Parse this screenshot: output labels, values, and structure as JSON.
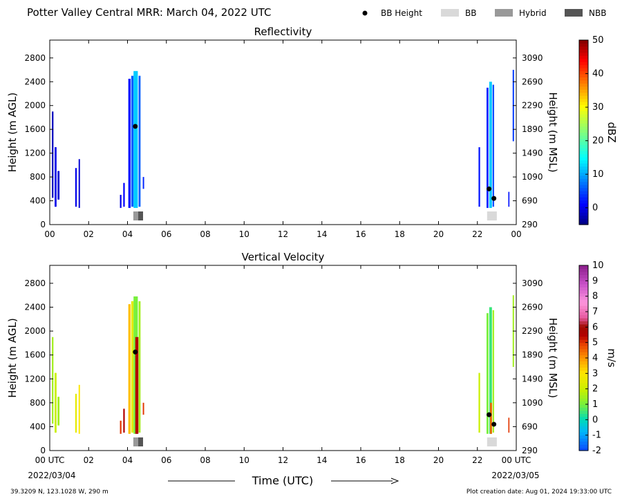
{
  "title": "Potter Valley Central MRR:  March 04, 2022 UTC",
  "legend": [
    {
      "label": "BB Height",
      "kind": "dot",
      "color": "#000000"
    },
    {
      "label": "BB",
      "kind": "box",
      "color": "#d9d9d9"
    },
    {
      "label": "Hybrid",
      "kind": "box",
      "color": "#999999"
    },
    {
      "label": "NBB",
      "kind": "box",
      "color": "#555555"
    }
  ],
  "x_axis": {
    "label": "Time (UTC)",
    "tick_labels_top": [
      "00",
      "02",
      "04",
      "06",
      "08",
      "10",
      "12",
      "14",
      "16",
      "18",
      "20",
      "22",
      "00"
    ],
    "tick_labels_bottom": [
      "00 UTC",
      "02",
      "04",
      "06",
      "08",
      "10",
      "12",
      "14",
      "16",
      "18",
      "20",
      "22",
      "00 UTC"
    ],
    "start_date": "2022/03/04",
    "end_date": "2022/03/05"
  },
  "footer": {
    "location": "39.3209 N, 123.1028 W, 290 m",
    "creation": "Plot creation date: Aug 01, 2024 19:33:00 UTC"
  },
  "chart_data": [
    {
      "type": "heatmap",
      "title": "Reflectivity",
      "xlabel": "",
      "ylabel": "Height (m AGL)",
      "y2label": "Height (m MSL)",
      "xlim": [
        0,
        24
      ],
      "ylim": [
        0,
        3100
      ],
      "yticks": [
        0,
        400,
        800,
        1200,
        1600,
        2000,
        2400,
        2800
      ],
      "y2ticks": [
        290,
        690,
        1090,
        1490,
        1890,
        2290,
        2690,
        3090
      ],
      "colorbar": {
        "label": "dBZ",
        "min": -5,
        "max": 50,
        "ticks": [
          0,
          10,
          20,
          30,
          40,
          50
        ],
        "scheme": "jet"
      },
      "columns": [
        {
          "x": 0.15,
          "w": 0.08,
          "bottom": 450,
          "top": 1900,
          "value": -2
        },
        {
          "x": 0.3,
          "w": 0.1,
          "bottom": 300,
          "top": 1300,
          "value": 0
        },
        {
          "x": 0.45,
          "w": 0.1,
          "bottom": 420,
          "top": 900,
          "value": -1
        },
        {
          "x": 1.35,
          "w": 0.08,
          "bottom": 300,
          "top": 950,
          "value": 0
        },
        {
          "x": 1.52,
          "w": 0.07,
          "bottom": 280,
          "top": 1100,
          "value": -1
        },
        {
          "x": 3.65,
          "w": 0.08,
          "bottom": 280,
          "top": 500,
          "value": 0
        },
        {
          "x": 3.82,
          "w": 0.08,
          "bottom": 300,
          "top": 700,
          "value": 1
        },
        {
          "x": 4.1,
          "w": 0.12,
          "bottom": 280,
          "top": 2450,
          "value": 2
        },
        {
          "x": 4.25,
          "w": 0.12,
          "bottom": 300,
          "top": 2500,
          "value": 6
        },
        {
          "x": 4.42,
          "w": 0.22,
          "bottom": 280,
          "top": 2580,
          "value": 12
        },
        {
          "x": 4.62,
          "w": 0.1,
          "bottom": 300,
          "top": 2500,
          "value": 6
        },
        {
          "x": 4.82,
          "w": 0.07,
          "bottom": 600,
          "top": 800,
          "value": 3
        },
        {
          "x": 22.1,
          "w": 0.08,
          "bottom": 300,
          "top": 1300,
          "value": 2
        },
        {
          "x": 22.52,
          "w": 0.1,
          "bottom": 280,
          "top": 2300,
          "value": 3
        },
        {
          "x": 22.68,
          "w": 0.14,
          "bottom": 280,
          "top": 2400,
          "value": 12
        },
        {
          "x": 22.82,
          "w": 0.08,
          "bottom": 300,
          "top": 2350,
          "value": 5
        },
        {
          "x": 23.62,
          "w": 0.06,
          "bottom": 300,
          "top": 550,
          "value": 2
        },
        {
          "x": 23.85,
          "w": 0.07,
          "bottom": 1400,
          "top": 2600,
          "value": 4
        }
      ],
      "bb_points": [
        {
          "x": 4.4,
          "y": 1650
        },
        {
          "x": 22.6,
          "y": 600
        },
        {
          "x": 22.85,
          "y": 440
        }
      ],
      "bb_types": [
        {
          "x0": 4.3,
          "x1": 4.55,
          "type": "Hybrid"
        },
        {
          "x0": 4.55,
          "x1": 4.8,
          "type": "NBB"
        },
        {
          "x0": 22.5,
          "x1": 23.0,
          "type": "BB"
        }
      ]
    },
    {
      "type": "heatmap",
      "title": "Vertical Velocity",
      "xlabel": "Time (UTC)",
      "ylabel": "Height (m AGL)",
      "y2label": "Height (m MSL)",
      "xlim": [
        0,
        24
      ],
      "ylim": [
        0,
        3100
      ],
      "yticks": [
        0,
        400,
        800,
        1200,
        1600,
        2000,
        2400,
        2800
      ],
      "y2ticks": [
        290,
        690,
        1090,
        1490,
        1890,
        2290,
        2690,
        3090
      ],
      "colorbar": {
        "label": "m/s",
        "min": -2,
        "max": 10,
        "ticks": [
          -2,
          -1,
          0,
          1,
          2,
          3,
          4,
          5,
          6,
          7,
          8,
          9,
          10
        ],
        "scheme": "velocity"
      },
      "columns": [
        {
          "x": 0.15,
          "w": 0.08,
          "bottom": 450,
          "top": 1900,
          "value": 1.5
        },
        {
          "x": 0.3,
          "w": 0.1,
          "bottom": 300,
          "top": 1300,
          "value": 2
        },
        {
          "x": 0.45,
          "w": 0.1,
          "bottom": 420,
          "top": 900,
          "value": 1.5
        },
        {
          "x": 1.35,
          "w": 0.08,
          "bottom": 300,
          "top": 950,
          "value": 2.5
        },
        {
          "x": 1.52,
          "w": 0.07,
          "bottom": 280,
          "top": 1100,
          "value": 3
        },
        {
          "x": 3.65,
          "w": 0.08,
          "bottom": 280,
          "top": 500,
          "value": 5
        },
        {
          "x": 3.82,
          "w": 0.08,
          "bottom": 300,
          "top": 700,
          "value": 5.5
        },
        {
          "x": 4.1,
          "w": 0.12,
          "bottom": 280,
          "top": 2450,
          "value": 3.5
        },
        {
          "x": 4.25,
          "w": 0.12,
          "bottom": 300,
          "top": 2500,
          "value": 2.5
        },
        {
          "x": 4.42,
          "w": 0.22,
          "bottom": 280,
          "top": 2580,
          "value": 1
        },
        {
          "x": 4.48,
          "w": 0.16,
          "bottom": 280,
          "top": 1900,
          "value": 5.5
        },
        {
          "x": 4.62,
          "w": 0.1,
          "bottom": 300,
          "top": 2500,
          "value": 1.5
        },
        {
          "x": 4.82,
          "w": 0.07,
          "bottom": 600,
          "top": 800,
          "value": 5
        },
        {
          "x": 22.1,
          "w": 0.08,
          "bottom": 300,
          "top": 1300,
          "value": 2
        },
        {
          "x": 22.52,
          "w": 0.1,
          "bottom": 280,
          "top": 2300,
          "value": 1
        },
        {
          "x": 22.68,
          "w": 0.14,
          "bottom": 280,
          "top": 2400,
          "value": 0.5
        },
        {
          "x": 22.7,
          "w": 0.1,
          "bottom": 280,
          "top": 800,
          "value": 4.5
        },
        {
          "x": 22.82,
          "w": 0.08,
          "bottom": 300,
          "top": 2350,
          "value": 1.5
        },
        {
          "x": 23.62,
          "w": 0.06,
          "bottom": 300,
          "top": 550,
          "value": 5
        },
        {
          "x": 23.85,
          "w": 0.07,
          "bottom": 1400,
          "top": 2600,
          "value": 1.5
        }
      ],
      "bb_points": [
        {
          "x": 4.4,
          "y": 1650
        },
        {
          "x": 22.6,
          "y": 600
        },
        {
          "x": 22.85,
          "y": 440
        }
      ],
      "bb_types": [
        {
          "x0": 4.3,
          "x1": 4.55,
          "type": "Hybrid"
        },
        {
          "x0": 4.55,
          "x1": 4.8,
          "type": "NBB"
        },
        {
          "x0": 22.5,
          "x1": 23.0,
          "type": "BB"
        }
      ]
    }
  ]
}
